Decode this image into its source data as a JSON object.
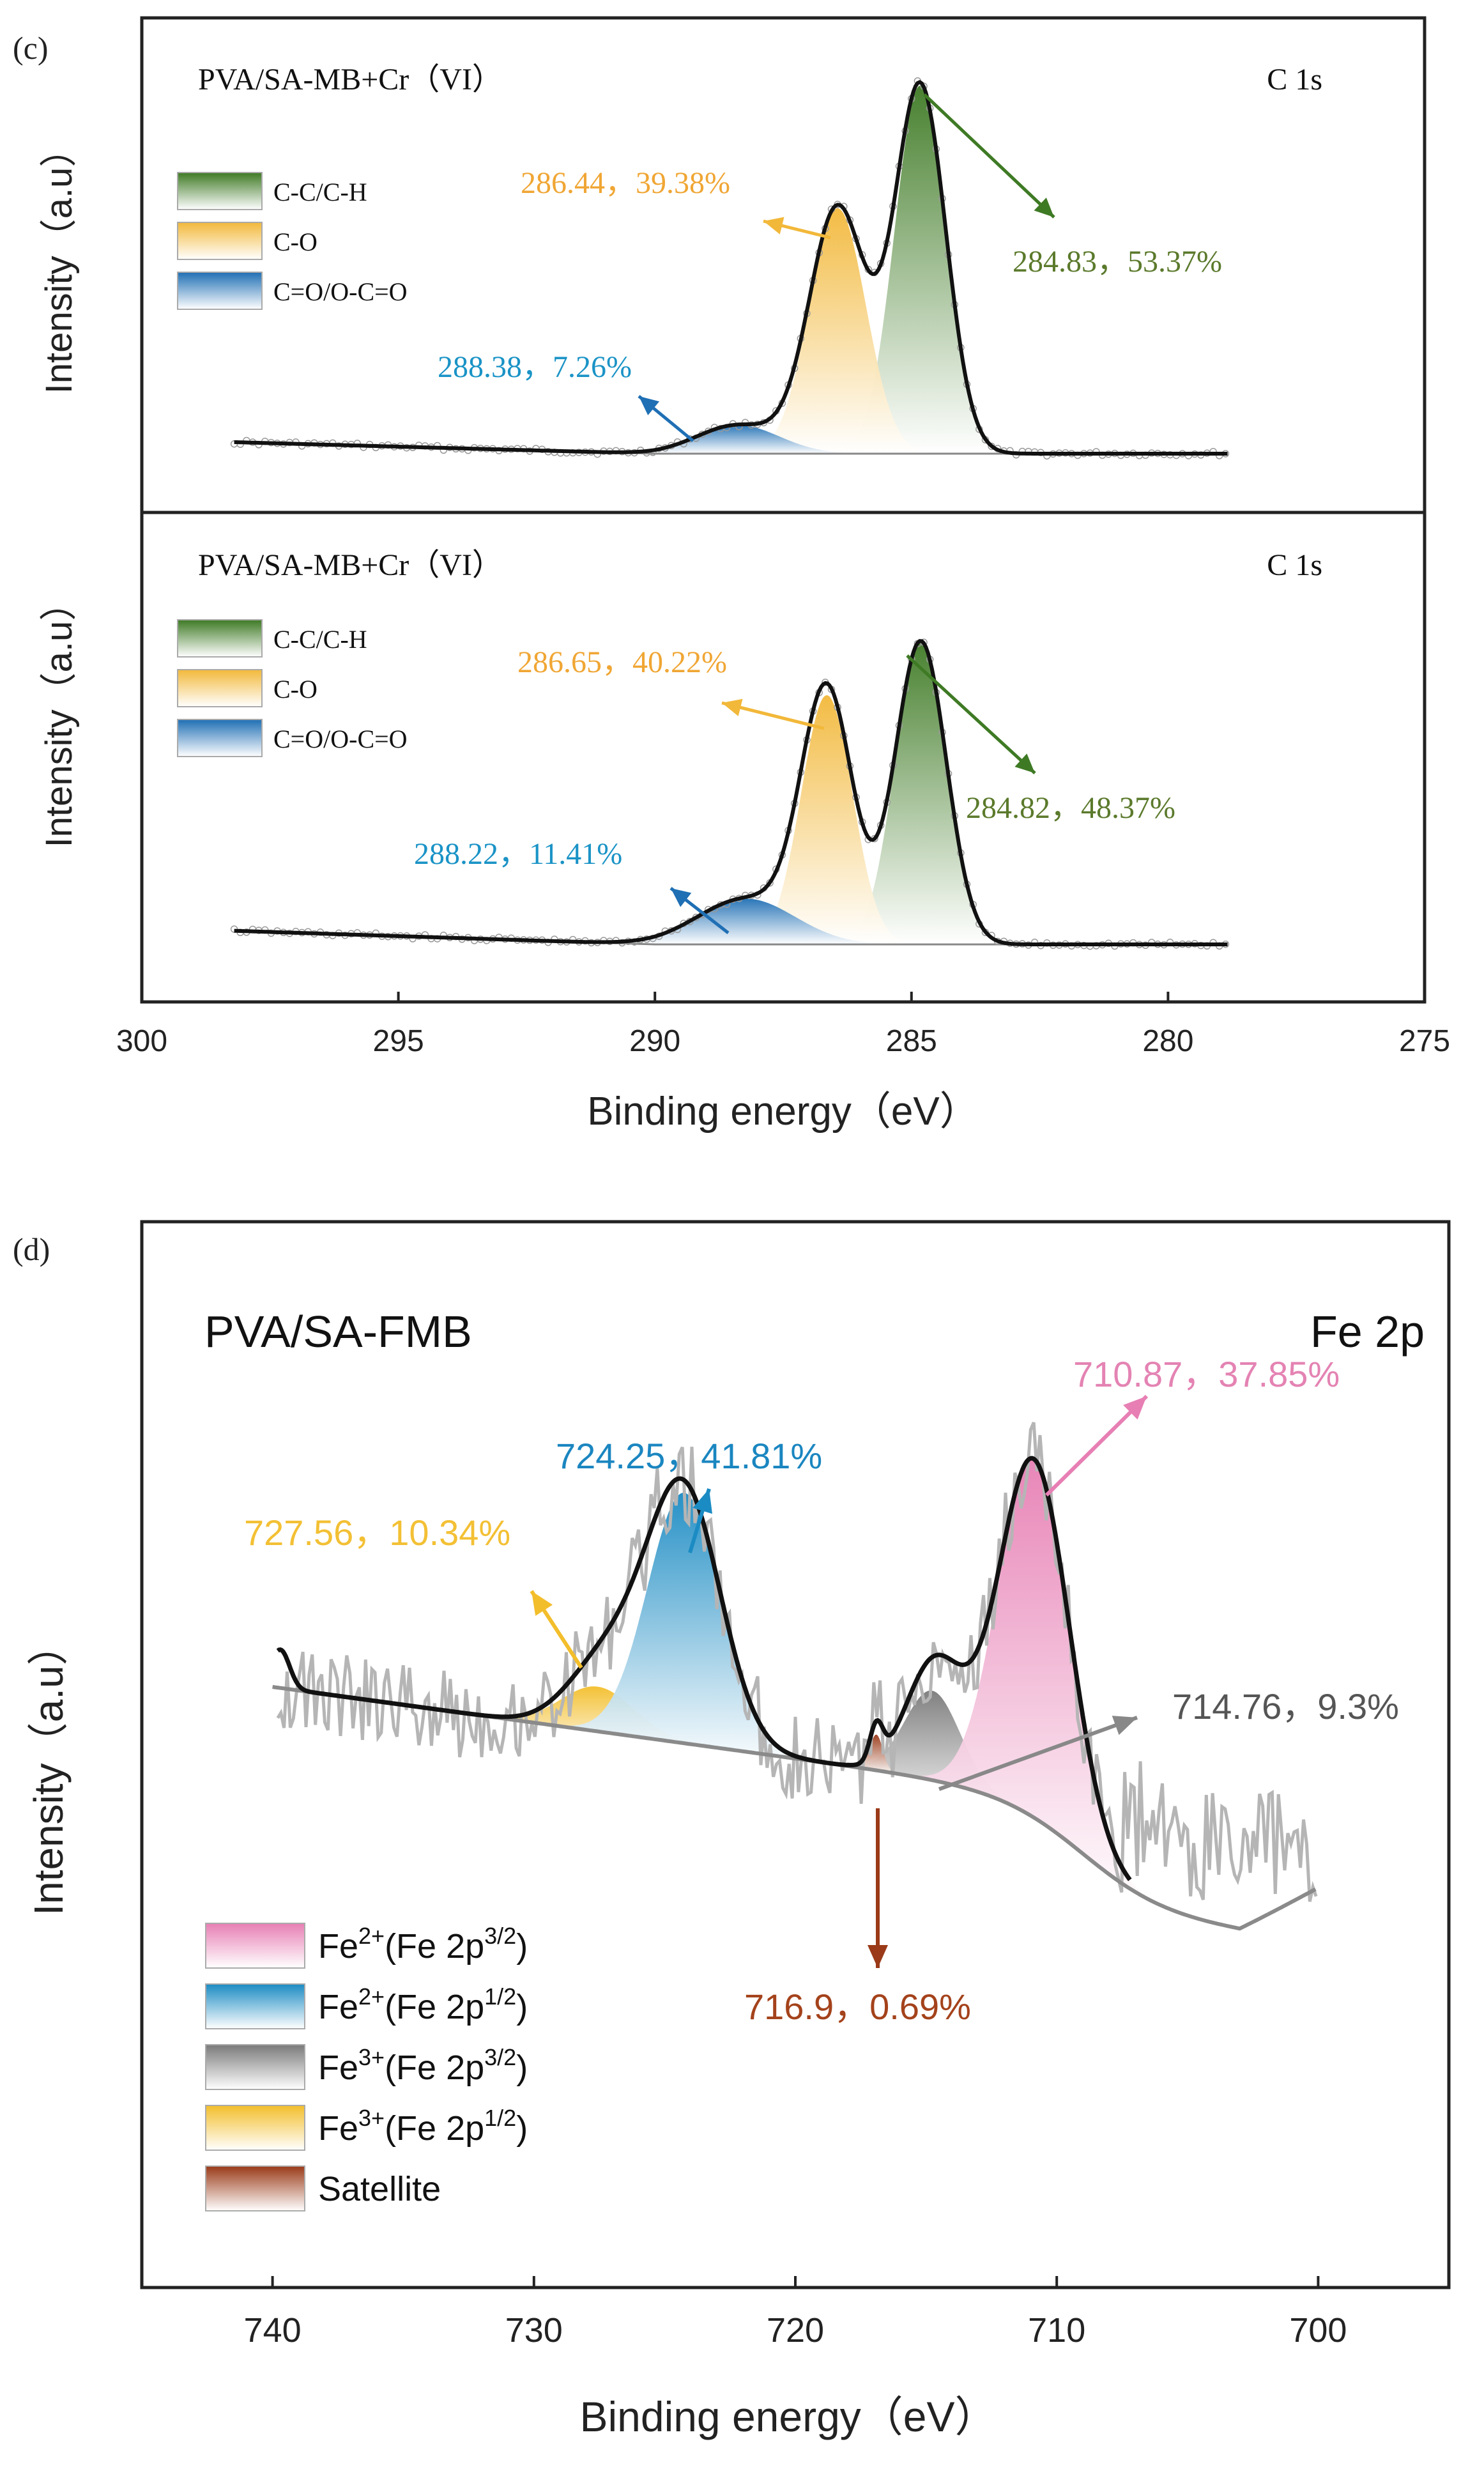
{
  "colors": {
    "cc_green": "#3e7a24",
    "co_yellow": "#f2b83a",
    "coo_blue": "#1f6fb4",
    "fe2_32_pink": "#e77fb4",
    "fe2_12_blue": "#1b8bc3",
    "fe3_32_gray": "#7a7a7a",
    "fe3_12_yellow": "#f3be2b",
    "sat_brown": "#9a3a18",
    "label_green": "#5b7a2c",
    "label_orange": "#f0a634",
    "label_cyan": "#1a93c6",
    "label_pink": "#e483b3",
    "label_blue": "#1a86c0",
    "label_gold": "#f3c034",
    "label_gray": "#555555",
    "label_brown": "#a4421b"
  },
  "chart_data": [
    {
      "panel": "(c)",
      "type": "area",
      "xlabel": "Binding energy（eV）",
      "ylabel": "Intensity（a.u）",
      "xlim": [
        300,
        275
      ],
      "xticks": [
        "300",
        "295",
        "290",
        "285",
        "280",
        "275"
      ],
      "subplots": [
        {
          "title": "PVA/SA-MB+Cr（VI）",
          "element": "C 1s",
          "legend": [
            "C-C/C-H",
            "C-O",
            "C=O/O-C=O"
          ],
          "peaks": [
            {
              "name": "C-C/C-H",
              "center": 284.83,
              "percent": 53.37,
              "label": "284.83，53.37%",
              "height": 0.9,
              "width": 0.5
            },
            {
              "name": "C-O",
              "center": 286.44,
              "percent": 39.38,
              "label": "286.44，39.38%",
              "height": 0.6,
              "width": 0.55
            },
            {
              "name": "C=O/O-C=O",
              "center": 288.38,
              "percent": 7.26,
              "label": "288.38，7.26%",
              "height": 0.07,
              "width": 0.8
            }
          ],
          "xrange": [
            298.2,
            278.8
          ]
        },
        {
          "title": "PVA/SA-MB+Cr（VI）",
          "element": "C 1s",
          "legend": [
            "C-C/C-H",
            "C-O",
            "C=O/O-C=O"
          ],
          "peaks": [
            {
              "name": "C-C/C-H",
              "center": 284.82,
              "percent": 48.37,
              "label": "284.82，48.37%",
              "height": 0.73,
              "width": 0.5
            },
            {
              "name": "C-O",
              "center": 286.65,
              "percent": 40.22,
              "label": "286.65，40.22%",
              "height": 0.6,
              "width": 0.5
            },
            {
              "name": "C=O/O-C=O",
              "center": 288.22,
              "percent": 11.41,
              "label": "288.22，11.41%",
              "height": 0.11,
              "width": 0.95
            }
          ],
          "xrange": [
            298.2,
            278.8
          ]
        }
      ]
    },
    {
      "panel": "(d)",
      "type": "area",
      "title": "PVA/SA-FMB",
      "element": "Fe 2p",
      "xlabel": "Binding energy（eV）",
      "ylabel": "Intensity（a.u）",
      "xlim": [
        745,
        695
      ],
      "xticks": [
        "740",
        "730",
        "720",
        "710",
        "700"
      ],
      "legend": [
        {
          "base": "Fe",
          "sup": "2+",
          "rest": "(Fe 2p",
          "sup2": "3/2",
          "end": ")"
        },
        {
          "base": "Fe",
          "sup": "2+",
          "rest": "(Fe 2p",
          "sup2": "1/2",
          "end": ")"
        },
        {
          "base": "Fe",
          "sup": "3+",
          "rest": "(Fe 2p",
          "sup2": "3/2",
          "end": ")"
        },
        {
          "base": "Fe",
          "sup": "3+",
          "rest": "(Fe 2p",
          "sup2": "1/2",
          "end": ")"
        },
        {
          "base": "Satellite",
          "sup": "",
          "rest": "",
          "sup2": "",
          "end": ""
        }
      ],
      "peaks": [
        {
          "name": "Fe2+ (Fe 2p3/2)",
          "center": 710.87,
          "percent": 37.85,
          "label": "710.87，37.85%",
          "height": 0.8,
          "width": 1.35
        },
        {
          "name": "Fe2+ (Fe 2p1/2)",
          "center": 724.25,
          "percent": 41.81,
          "label": "724.25，41.81%",
          "height": 0.56,
          "width": 1.4
        },
        {
          "name": "Fe3+ (Fe 2p3/2)",
          "center": 714.76,
          "percent": 9.3,
          "label": "714.76，9.3%",
          "height": 0.2,
          "width": 1.05
        },
        {
          "name": "Fe3+ (Fe 2p1/2)",
          "center": 727.56,
          "percent": 10.34,
          "label": "727.56，10.34%",
          "height": 0.1,
          "width": 1.4
        },
        {
          "name": "Satellite",
          "center": 716.9,
          "percent": 0.69,
          "label": "716.9，0.69%",
          "height": 0.08,
          "width": 0.25
        }
      ],
      "xrange": [
        740,
        700
      ]
    }
  ]
}
